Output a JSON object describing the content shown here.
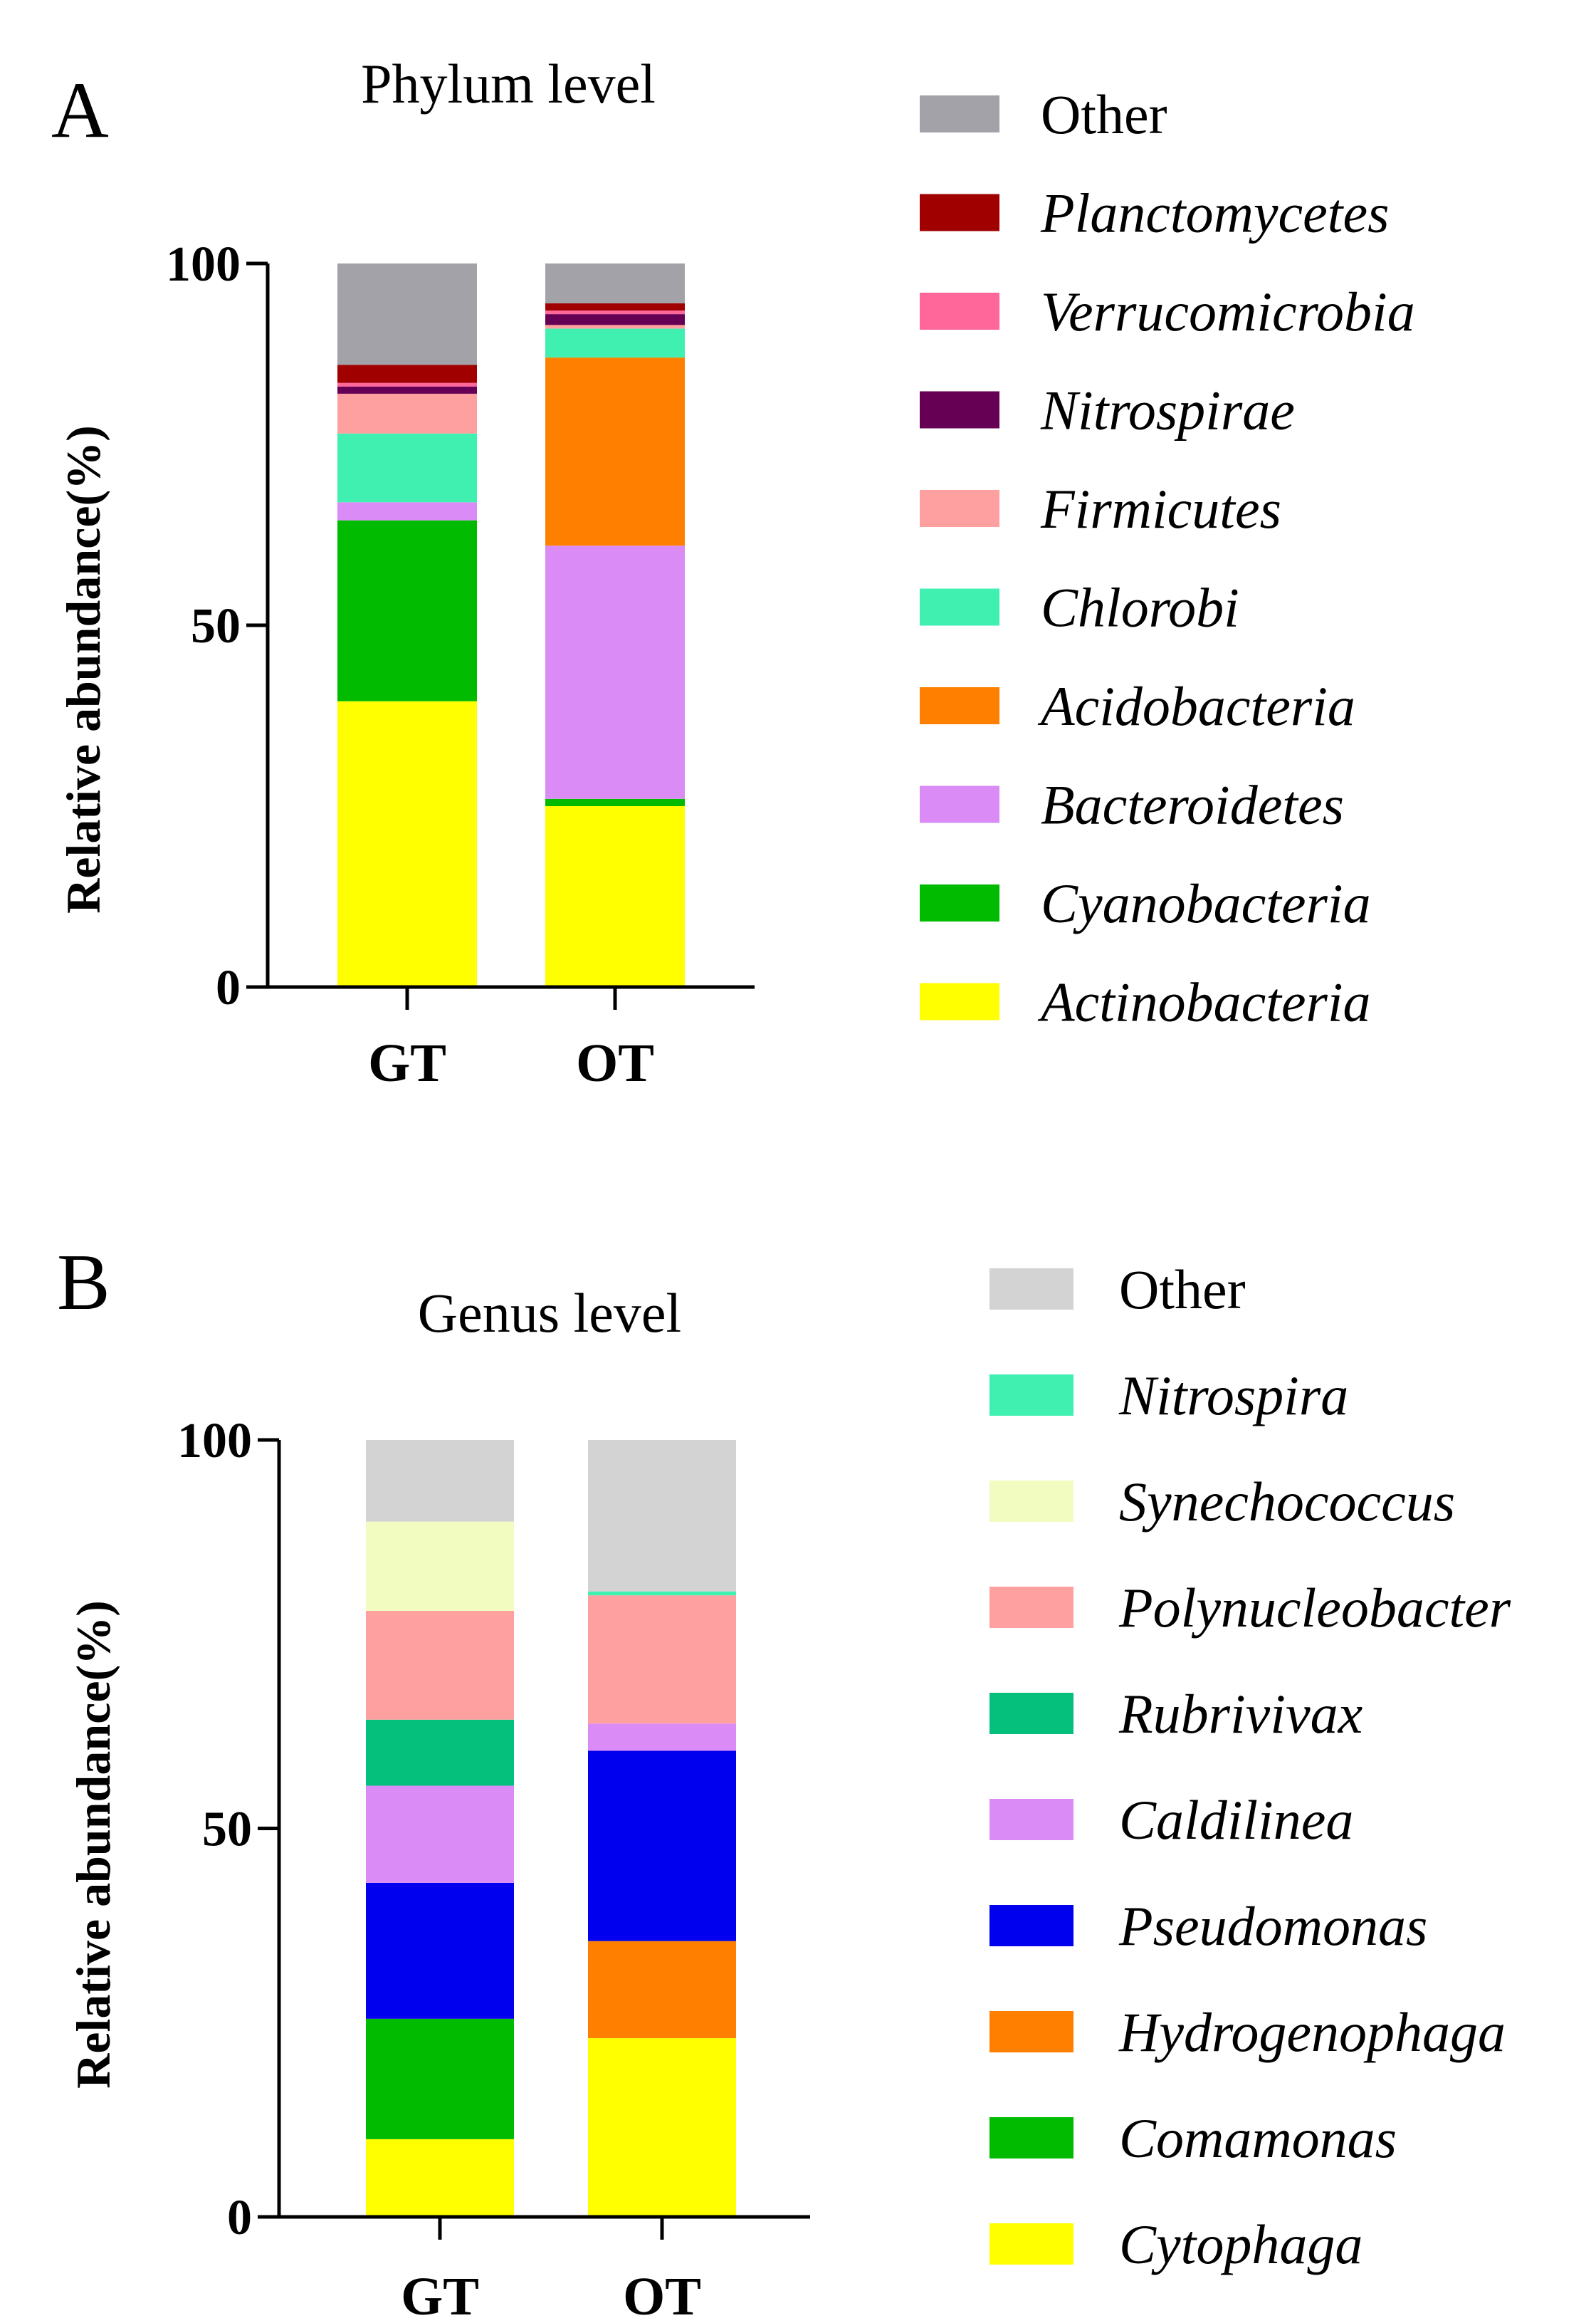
{
  "chart_data": [
    {
      "type": "bar",
      "stacked": true,
      "panel": "A",
      "title": "Phylum level",
      "ylabel": "Relative abundance(%)",
      "xlabel": "",
      "ylim": [
        0,
        100
      ],
      "yticks": [
        0,
        50,
        100
      ],
      "categories": [
        "GT",
        "OT"
      ],
      "series": [
        {
          "name": "Actinobacteria",
          "italic": true,
          "color": "#FFFF00",
          "values": [
            39.5,
            25.0
          ]
        },
        {
          "name": "Cyanobacteria",
          "italic": true,
          "color": "#00BB00",
          "values": [
            25.0,
            1.0
          ]
        },
        {
          "name": "Bacteroidetes",
          "italic": true,
          "color": "#DA8BF5",
          "values": [
            2.5,
            35.0
          ]
        },
        {
          "name": "Acidobacteria",
          "italic": true,
          "color": "#FF8000",
          "values": [
            0.0,
            26.0
          ]
        },
        {
          "name": "Chlorobi",
          "italic": true,
          "color": "#40F0B0",
          "values": [
            9.5,
            4.0
          ]
        },
        {
          "name": "Firmicutes",
          "italic": true,
          "color": "#FFA0A0",
          "values": [
            5.5,
            0.5
          ]
        },
        {
          "name": "Nitrospirae",
          "italic": true,
          "color": "#660055",
          "values": [
            1.0,
            1.5
          ]
        },
        {
          "name": "Verrucomicrobia",
          "italic": true,
          "color": "#FF6699",
          "values": [
            0.5,
            0.5
          ]
        },
        {
          "name": "Planctomycetes",
          "italic": true,
          "color": "#A00000",
          "values": [
            2.5,
            1.0
          ]
        },
        {
          "name": "Other",
          "italic": false,
          "color": "#A2A2A8",
          "values": [
            14.0,
            5.5
          ]
        }
      ]
    },
    {
      "type": "bar",
      "stacked": true,
      "panel": "B",
      "title": "Genus level",
      "ylabel": "Relative abundance(%)",
      "xlabel": "",
      "ylim": [
        0,
        100
      ],
      "yticks": [
        0,
        50,
        100
      ],
      "categories": [
        "GT",
        "OT"
      ],
      "series": [
        {
          "name": "Cytophaga",
          "italic": true,
          "color": "#FFFF00",
          "values": [
            10.0,
            23.0
          ]
        },
        {
          "name": "Comamonas",
          "italic": true,
          "color": "#00BB00",
          "values": [
            15.5,
            0.0
          ]
        },
        {
          "name": "Hydrogenophaga",
          "italic": true,
          "color": "#FF8000",
          "values": [
            0.0,
            12.5
          ]
        },
        {
          "name": "Pseudomonas",
          "italic": true,
          "color": "#0000EE",
          "values": [
            17.5,
            24.5
          ]
        },
        {
          "name": "Caldilinea",
          "italic": true,
          "color": "#DA8BF5",
          "values": [
            12.5,
            3.5
          ]
        },
        {
          "name": "Rubrivivax",
          "italic": true,
          "color": "#05C07C",
          "values": [
            8.5,
            0.0
          ]
        },
        {
          "name": "Polynucleobacter",
          "italic": true,
          "color": "#FFA0A0",
          "values": [
            14.0,
            16.5
          ]
        },
        {
          "name": "Synechococcus",
          "italic": true,
          "color": "#F2FCC0",
          "values": [
            11.5,
            0.0
          ]
        },
        {
          "name": "Nitrospira",
          "italic": true,
          "color": "#40F0B0",
          "values": [
            0.0,
            0.5
          ]
        },
        {
          "name": "Other",
          "italic": false,
          "color": "#D3D3D3",
          "values": [
            10.5,
            19.5
          ]
        }
      ]
    }
  ]
}
